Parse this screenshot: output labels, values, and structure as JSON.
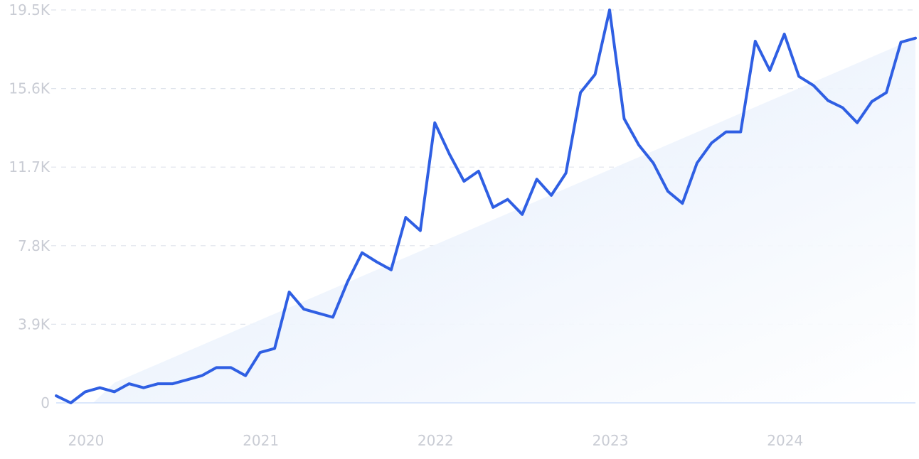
{
  "chart_data": {
    "type": "line",
    "title": "",
    "xlabel": "",
    "ylabel": "",
    "ylim": [
      0,
      19500
    ],
    "yticks": [
      {
        "value": 0,
        "label": "0"
      },
      {
        "value": 3900,
        "label": "3.9K"
      },
      {
        "value": 7800,
        "label": "7.8K"
      },
      {
        "value": 11700,
        "label": "11.7K"
      },
      {
        "value": 15600,
        "label": "15.6K"
      },
      {
        "value": 19500,
        "label": "19.5K"
      }
    ],
    "xticks": [
      {
        "value": "2020-01",
        "label": "2020"
      },
      {
        "value": "2021-01",
        "label": "2021"
      },
      {
        "value": "2022-01",
        "label": "2022"
      },
      {
        "value": "2023-01",
        "label": "2023"
      },
      {
        "value": "2024-01",
        "label": "2024"
      }
    ],
    "grid": true,
    "legend": "none",
    "colors": {
      "line": "#2f5fe3",
      "trend_fill": "#e8f0fc",
      "grid": "#dfe4ec",
      "tick_text": "#c9ccd4"
    },
    "series": [
      {
        "x": [
          "2019-11",
          "2019-12",
          "2020-01",
          "2020-02",
          "2020-03",
          "2020-04",
          "2020-05",
          "2020-06",
          "2020-07",
          "2020-08",
          "2020-09",
          "2020-10",
          "2020-11",
          "2020-12",
          "2021-01",
          "2021-02",
          "2021-03",
          "2021-04",
          "2021-05",
          "2021-06",
          "2021-07",
          "2021-08",
          "2021-09",
          "2021-10",
          "2021-11",
          "2021-12",
          "2022-01",
          "2022-02",
          "2022-03",
          "2022-04",
          "2022-05",
          "2022-06",
          "2022-07",
          "2022-08",
          "2022-09",
          "2022-10",
          "2022-11",
          "2022-12",
          "2023-01",
          "2023-02",
          "2023-03",
          "2023-04",
          "2023-05",
          "2023-06",
          "2023-07",
          "2023-08",
          "2023-09",
          "2023-10",
          "2023-11",
          "2023-12",
          "2024-01",
          "2024-02",
          "2024-03",
          "2024-04",
          "2024-05",
          "2024-06",
          "2024-07",
          "2024-08",
          "2024-09",
          "2024-10"
        ],
        "values": [
          350,
          0,
          550,
          750,
          550,
          950,
          750,
          950,
          950,
          1150,
          1350,
          1750,
          1750,
          1350,
          2500,
          2700,
          5500,
          4650,
          4450,
          4250,
          6000,
          7450,
          7000,
          6600,
          9200,
          8550,
          13900,
          12350,
          11000,
          11500,
          9700,
          10100,
          9350,
          11100,
          10300,
          11400,
          15400,
          16300,
          19500,
          14100,
          12800,
          11900,
          10500,
          9900,
          11900,
          12900,
          13450,
          13450,
          17950,
          16500,
          18300,
          16200,
          15750,
          15000,
          14650,
          13900,
          14950,
          15400,
          17900,
          18100
        ]
      }
    ],
    "trend": {
      "x": [
        "2020-03",
        "2024-10"
      ],
      "values": [
        1000,
        18100
      ]
    }
  }
}
